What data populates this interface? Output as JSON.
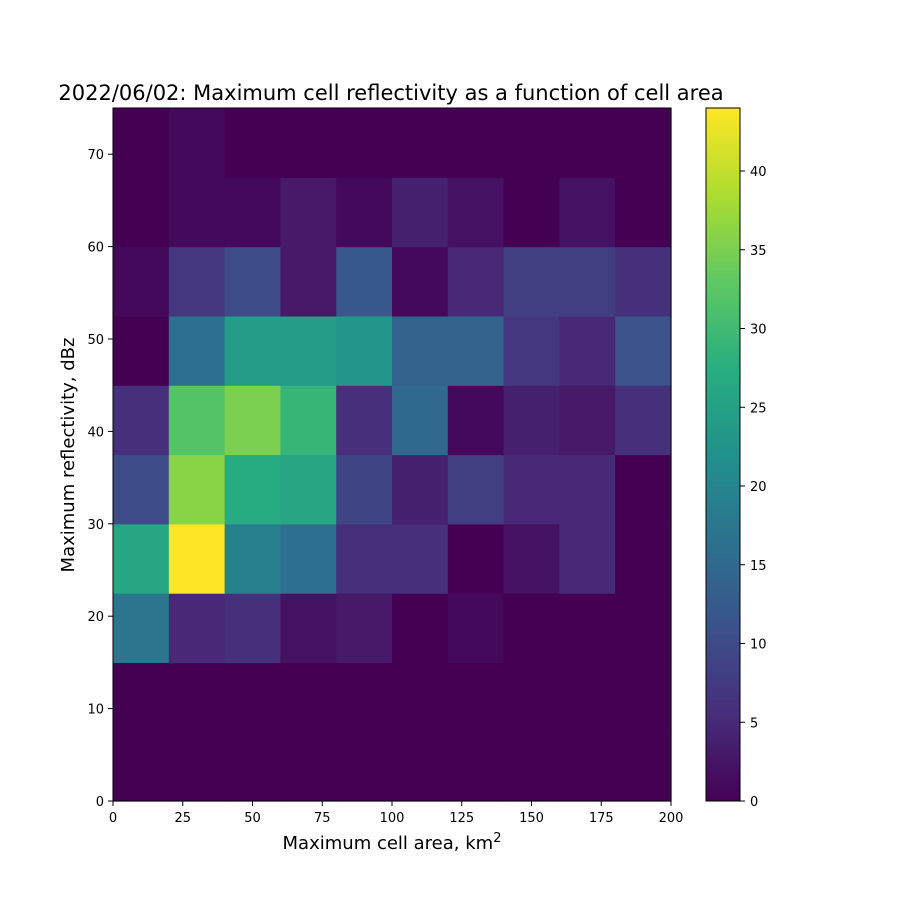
{
  "chart_data": {
    "type": "heatmap",
    "title": "2022/06/02: Maximum cell reflectivity as a function of cell area",
    "xlabel": "Maximum cell area, km",
    "xlabel_superscript": "2",
    "ylabel": "Maximum reflectivity, dBz",
    "x_edges": [
      0,
      20,
      40,
      60,
      80,
      100,
      120,
      140,
      160,
      180,
      200
    ],
    "y_edges": [
      0,
      7.5,
      15,
      22.5,
      30,
      37.5,
      45,
      52.5,
      60,
      67.5,
      75
    ],
    "xlim": [
      0,
      200
    ],
    "ylim": [
      0,
      75
    ],
    "x_ticks": [
      0,
      25,
      50,
      75,
      100,
      125,
      150,
      175,
      200
    ],
    "y_ticks": [
      0,
      10,
      20,
      30,
      40,
      50,
      60,
      70
    ],
    "counts_rows_bottom_to_top": [
      [
        0,
        0,
        0,
        0,
        0,
        0,
        0,
        0,
        0,
        0
      ],
      [
        0,
        0,
        0,
        0,
        0,
        0,
        0,
        0,
        0,
        0
      ],
      [
        17,
        5,
        6,
        2,
        3,
        0,
        1,
        0,
        0,
        0
      ],
      [
        26,
        44,
        19,
        16,
        6,
        6,
        0,
        2,
        5,
        0
      ],
      [
        10,
        36,
        27,
        26,
        9,
        4,
        8,
        5,
        5,
        0
      ],
      [
        6,
        32,
        35,
        29,
        6,
        15,
        1,
        4,
        3,
        6
      ],
      [
        0,
        16,
        24,
        24,
        23,
        14,
        14,
        7,
        5,
        11
      ],
      [
        1,
        7,
        10,
        3,
        12,
        1,
        5,
        8,
        8,
        6
      ],
      [
        0,
        1,
        1,
        3,
        1,
        4,
        2,
        0,
        2,
        0
      ],
      [
        0,
        1,
        0,
        0,
        0,
        0,
        0,
        0,
        0,
        0
      ]
    ],
    "colorbar": {
      "colormap": "viridis",
      "vmin": 0,
      "vmax": 44,
      "ticks": [
        0,
        5,
        10,
        15,
        20,
        25,
        30,
        35,
        40
      ]
    },
    "grid": false,
    "legend": "none"
  }
}
